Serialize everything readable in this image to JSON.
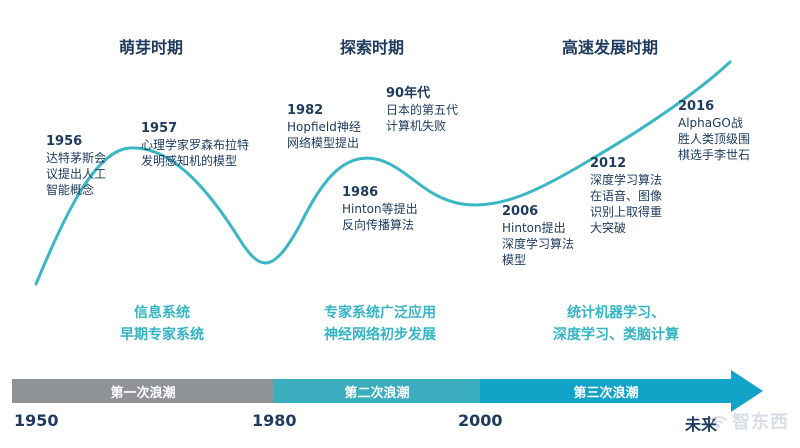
{
  "phases": [
    "萌芽时期",
    "探索时期",
    "高速发展时期"
  ],
  "events": [
    {
      "year": "1956",
      "lines": [
        "达特茅斯会",
        "议提出人工",
        "智能概念"
      ]
    },
    {
      "year": "1957",
      "lines": [
        "心理学家罗森布拉特",
        "发明感知机的模型"
      ]
    },
    {
      "year": "1982",
      "lines": [
        "Hopfield神经",
        "网络模型提出"
      ]
    },
    {
      "year": "90年代",
      "lines": [
        "日本的第五代",
        "计算机失败"
      ]
    },
    {
      "year": "1986",
      "lines": [
        "Hinton等提出",
        "反向传播算法"
      ]
    },
    {
      "year": "2006",
      "lines": [
        "Hinton提出",
        "深度学习算法",
        "模型"
      ]
    },
    {
      "year": "2012",
      "lines": [
        "深度学习算法",
        "在语音、图像",
        "识别上取得重",
        "大突破"
      ]
    },
    {
      "year": "2016",
      "lines": [
        "AlphaGO战",
        "胜人类顶级围",
        "棋选手李世石"
      ]
    }
  ],
  "systems": [
    [
      "信息系统",
      "早期专家系统"
    ],
    [
      "专家系统广泛应用",
      "神经网络初步发展"
    ],
    [
      "统计机器学习、",
      "深度学习、类脑计算"
    ]
  ],
  "waves": [
    {
      "label": "第一次浪潮",
      "color": "#8f9296"
    },
    {
      "label": "第二次浪潮",
      "color": "#3aaebe"
    },
    {
      "label": "第三次浪潮",
      "color": "#12a3c8"
    }
  ],
  "ticks": [
    "1950",
    "1980",
    "2000",
    "未来"
  ],
  "watermark": "智东西",
  "colors": {
    "curve": "#3bb6c4",
    "text": "#1e3a5f",
    "accent": "#35b5c4"
  }
}
